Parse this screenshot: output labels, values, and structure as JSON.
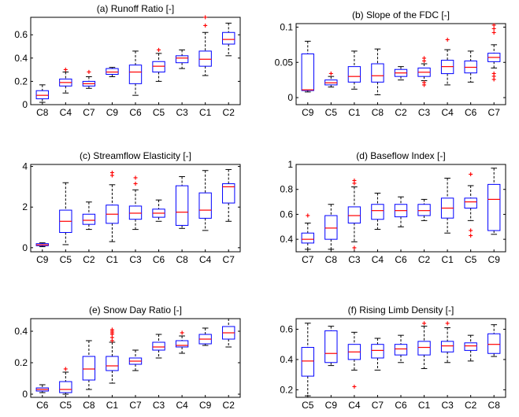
{
  "chart_data": [
    {
      "type": "box",
      "title": "(a) Runoff Ratio [-]",
      "ylim": [
        0,
        0.75
      ],
      "yticks": [
        0,
        0.2,
        0.4,
        0.6
      ],
      "yticklabels": [
        "0",
        "0.2",
        "0.4",
        "0.6"
      ],
      "categories": [
        "C8",
        "C4",
        "C7",
        "C9",
        "C6",
        "C5",
        "C3",
        "C1",
        "C2"
      ],
      "boxes": [
        {
          "min": 0.02,
          "q1": 0.05,
          "med": 0.08,
          "q3": 0.12,
          "max": 0.17,
          "outliers": []
        },
        {
          "min": 0.1,
          "q1": 0.16,
          "med": 0.19,
          "q3": 0.22,
          "max": 0.28,
          "outliers": [
            0.3
          ]
        },
        {
          "min": 0.14,
          "q1": 0.16,
          "med": 0.18,
          "q3": 0.2,
          "max": 0.24,
          "outliers": [
            0.28
          ]
        },
        {
          "min": 0.24,
          "q1": 0.26,
          "med": 0.28,
          "q3": 0.31,
          "max": 0.32,
          "outliers": []
        },
        {
          "min": 0.08,
          "q1": 0.18,
          "med": 0.28,
          "q3": 0.34,
          "max": 0.46,
          "outliers": []
        },
        {
          "min": 0.2,
          "q1": 0.28,
          "med": 0.33,
          "q3": 0.37,
          "max": 0.44,
          "outliers": [
            0.47
          ]
        },
        {
          "min": 0.31,
          "q1": 0.36,
          "med": 0.4,
          "q3": 0.42,
          "max": 0.47,
          "outliers": []
        },
        {
          "min": 0.25,
          "q1": 0.33,
          "med": 0.39,
          "q3": 0.46,
          "max": 0.62,
          "outliers": [
            0.68,
            0.75
          ]
        },
        {
          "min": 0.42,
          "q1": 0.52,
          "med": 0.56,
          "q3": 0.62,
          "max": 0.7,
          "outliers": []
        }
      ]
    },
    {
      "type": "box",
      "title": "(b) Slope of the FDC [-]",
      "ylim": [
        -0.01,
        0.105
      ],
      "yticks": [
        0,
        0.05,
        0.1
      ],
      "yticklabels": [
        "0",
        "0.05",
        "0.1"
      ],
      "categories": [
        "C9",
        "C5",
        "C1",
        "C8",
        "C2",
        "C3",
        "C4",
        "C6",
        "C7"
      ],
      "boxes": [
        {
          "min": 0.008,
          "q1": 0.01,
          "med": 0.011,
          "q3": 0.062,
          "max": 0.08,
          "outliers": []
        },
        {
          "min": 0.015,
          "q1": 0.018,
          "med": 0.021,
          "q3": 0.025,
          "max": 0.03,
          "outliers": [
            0.034
          ]
        },
        {
          "min": 0.012,
          "q1": 0.022,
          "med": 0.03,
          "q3": 0.044,
          "max": 0.066,
          "outliers": []
        },
        {
          "min": 0.004,
          "q1": 0.022,
          "med": 0.031,
          "q3": 0.048,
          "max": 0.069,
          "outliers": []
        },
        {
          "min": 0.025,
          "q1": 0.03,
          "med": 0.035,
          "q3": 0.04,
          "max": 0.044,
          "outliers": []
        },
        {
          "min": 0.024,
          "q1": 0.03,
          "med": 0.036,
          "q3": 0.042,
          "max": 0.048,
          "outliers": [
            0.018,
            0.021,
            0.052,
            0.056
          ]
        },
        {
          "min": 0.018,
          "q1": 0.034,
          "med": 0.044,
          "q3": 0.053,
          "max": 0.068,
          "outliers": [
            0.082
          ]
        },
        {
          "min": 0.022,
          "q1": 0.035,
          "med": 0.043,
          "q3": 0.052,
          "max": 0.066,
          "outliers": []
        },
        {
          "min": 0.042,
          "q1": 0.051,
          "med": 0.057,
          "q3": 0.063,
          "max": 0.075,
          "outliers": [
            0.026,
            0.03,
            0.034,
            0.092,
            0.098,
            0.103
          ]
        }
      ]
    },
    {
      "type": "box",
      "title": "(c) Streamflow Elasticity [-]",
      "ylim": [
        -0.2,
        4.1
      ],
      "yticks": [
        0,
        2,
        4
      ],
      "yticklabels": [
        "0",
        "2",
        "4"
      ],
      "categories": [
        "C9",
        "C5",
        "C2",
        "C1",
        "C3",
        "C6",
        "C8",
        "C4",
        "C7"
      ],
      "boxes": [
        {
          "min": 0.05,
          "q1": 0.1,
          "med": 0.14,
          "q3": 0.2,
          "max": 0.24,
          "outliers": []
        },
        {
          "min": 0.15,
          "q1": 0.75,
          "med": 1.3,
          "q3": 1.85,
          "max": 3.2,
          "outliers": []
        },
        {
          "min": 0.9,
          "q1": 1.15,
          "med": 1.35,
          "q3": 1.65,
          "max": 2.25,
          "outliers": []
        },
        {
          "min": 0.3,
          "q1": 1.2,
          "med": 1.65,
          "q3": 2.1,
          "max": 3.1,
          "outliers": [
            3.55,
            3.7
          ]
        },
        {
          "min": 0.9,
          "q1": 1.4,
          "med": 1.7,
          "q3": 2.05,
          "max": 2.85,
          "outliers": [
            3.15,
            3.45
          ]
        },
        {
          "min": 1.3,
          "q1": 1.5,
          "med": 1.7,
          "q3": 1.9,
          "max": 2.35,
          "outliers": []
        },
        {
          "min": 0.95,
          "q1": 1.1,
          "med": 1.75,
          "q3": 3.05,
          "max": 3.5,
          "outliers": []
        },
        {
          "min": 0.85,
          "q1": 1.45,
          "med": 1.85,
          "q3": 2.7,
          "max": 3.8,
          "outliers": []
        },
        {
          "min": 1.3,
          "q1": 2.2,
          "med": 3.0,
          "q3": 3.15,
          "max": 3.85,
          "outliers": []
        }
      ]
    },
    {
      "type": "box",
      "title": "(d) Baseflow Index [-]",
      "ylim": [
        0.3,
        1.0
      ],
      "yticks": [
        0.4,
        0.6,
        0.8,
        1
      ],
      "yticklabels": [
        "0.4",
        "0.6",
        "0.8",
        "1"
      ],
      "categories": [
        "C7",
        "C8",
        "C3",
        "C4",
        "C6",
        "C2",
        "C1",
        "C5",
        "C9"
      ],
      "boxes": [
        {
          "min": 0.32,
          "q1": 0.37,
          "med": 0.4,
          "q3": 0.45,
          "max": 0.53,
          "outliers": [
            0.59
          ]
        },
        {
          "min": 0.32,
          "q1": 0.4,
          "med": 0.49,
          "q3": 0.59,
          "max": 0.68,
          "outliers": []
        },
        {
          "min": 0.38,
          "q1": 0.53,
          "med": 0.59,
          "q3": 0.66,
          "max": 0.82,
          "outliers": [
            0.33,
            0.85,
            0.87
          ]
        },
        {
          "min": 0.48,
          "q1": 0.56,
          "med": 0.63,
          "q3": 0.68,
          "max": 0.77,
          "outliers": []
        },
        {
          "min": 0.5,
          "q1": 0.58,
          "med": 0.63,
          "q3": 0.68,
          "max": 0.74,
          "outliers": []
        },
        {
          "min": 0.55,
          "q1": 0.59,
          "med": 0.63,
          "q3": 0.68,
          "max": 0.72,
          "outliers": []
        },
        {
          "min": 0.45,
          "q1": 0.57,
          "med": 0.65,
          "q3": 0.73,
          "max": 0.89,
          "outliers": []
        },
        {
          "min": 0.55,
          "q1": 0.65,
          "med": 0.7,
          "q3": 0.73,
          "max": 0.83,
          "outliers": [
            0.43,
            0.47,
            0.92
          ]
        },
        {
          "min": 0.44,
          "q1": 0.47,
          "med": 0.72,
          "q3": 0.84,
          "max": 0.97,
          "outliers": []
        }
      ]
    },
    {
      "type": "box",
      "title": "(e) Snow Day Ratio [-]",
      "ylim": [
        -0.02,
        0.48
      ],
      "yticks": [
        0,
        0.2,
        0.4
      ],
      "yticklabels": [
        "0",
        "0.2",
        "0.4"
      ],
      "categories": [
        "C6",
        "C5",
        "C8",
        "C1",
        "C7",
        "C3",
        "C4",
        "C9",
        "C2"
      ],
      "boxes": [
        {
          "min": 0.01,
          "q1": 0.02,
          "med": 0.03,
          "q3": 0.04,
          "max": 0.06,
          "outliers": []
        },
        {
          "min": 0.0,
          "q1": 0.01,
          "med": 0.03,
          "q3": 0.08,
          "max": 0.14,
          "outliers": [
            0.16
          ]
        },
        {
          "min": 0.03,
          "q1": 0.09,
          "med": 0.16,
          "q3": 0.24,
          "max": 0.34,
          "outliers": []
        },
        {
          "min": 0.07,
          "q1": 0.15,
          "med": 0.18,
          "q3": 0.24,
          "max": 0.33,
          "outliers": [
            0.34,
            0.36,
            0.38,
            0.39,
            0.4,
            0.41
          ]
        },
        {
          "min": 0.15,
          "q1": 0.19,
          "med": 0.21,
          "q3": 0.23,
          "max": 0.28,
          "outliers": []
        },
        {
          "min": 0.23,
          "q1": 0.28,
          "med": 0.3,
          "q3": 0.33,
          "max": 0.38,
          "outliers": []
        },
        {
          "min": 0.26,
          "q1": 0.3,
          "med": 0.31,
          "q3": 0.34,
          "max": 0.37,
          "outliers": [
            0.39
          ]
        },
        {
          "min": 0.31,
          "q1": 0.32,
          "med": 0.35,
          "q3": 0.38,
          "max": 0.42,
          "outliers": []
        },
        {
          "min": 0.3,
          "q1": 0.35,
          "med": 0.39,
          "q3": 0.43,
          "max": 0.48,
          "outliers": []
        }
      ]
    },
    {
      "type": "box",
      "title": "(f) Rising Limb Density [-]",
      "ylim": [
        0.15,
        0.67
      ],
      "yticks": [
        0.2,
        0.4,
        0.6
      ],
      "yticklabels": [
        "0.2",
        "0.4",
        "0.6"
      ],
      "categories": [
        "C5",
        "C9",
        "C4",
        "C7",
        "C6",
        "C1",
        "C3",
        "C2",
        "C8"
      ],
      "boxes": [
        {
          "min": 0.16,
          "q1": 0.29,
          "med": 0.39,
          "q3": 0.48,
          "max": 0.64,
          "outliers": []
        },
        {
          "min": 0.36,
          "q1": 0.38,
          "med": 0.44,
          "q3": 0.59,
          "max": 0.62,
          "outliers": []
        },
        {
          "min": 0.33,
          "q1": 0.4,
          "med": 0.45,
          "q3": 0.5,
          "max": 0.58,
          "outliers": [
            0.22
          ]
        },
        {
          "min": 0.33,
          "q1": 0.41,
          "med": 0.46,
          "q3": 0.5,
          "max": 0.54,
          "outliers": []
        },
        {
          "min": 0.38,
          "q1": 0.43,
          "med": 0.47,
          "q3": 0.5,
          "max": 0.56,
          "outliers": []
        },
        {
          "min": 0.34,
          "q1": 0.43,
          "med": 0.48,
          "q3": 0.52,
          "max": 0.62,
          "outliers": [
            0.64
          ]
        },
        {
          "min": 0.38,
          "q1": 0.45,
          "med": 0.49,
          "q3": 0.52,
          "max": 0.61,
          "outliers": [
            0.64
          ]
        },
        {
          "min": 0.39,
          "q1": 0.46,
          "med": 0.49,
          "q3": 0.51,
          "max": 0.56,
          "outliers": []
        },
        {
          "min": 0.42,
          "q1": 0.44,
          "med": 0.5,
          "q3": 0.57,
          "max": 0.63,
          "outliers": []
        }
      ]
    }
  ],
  "colors": {
    "box": "#0000ff",
    "median": "#ff0000",
    "outlier": "#ff0000",
    "whisker": "#000000"
  }
}
